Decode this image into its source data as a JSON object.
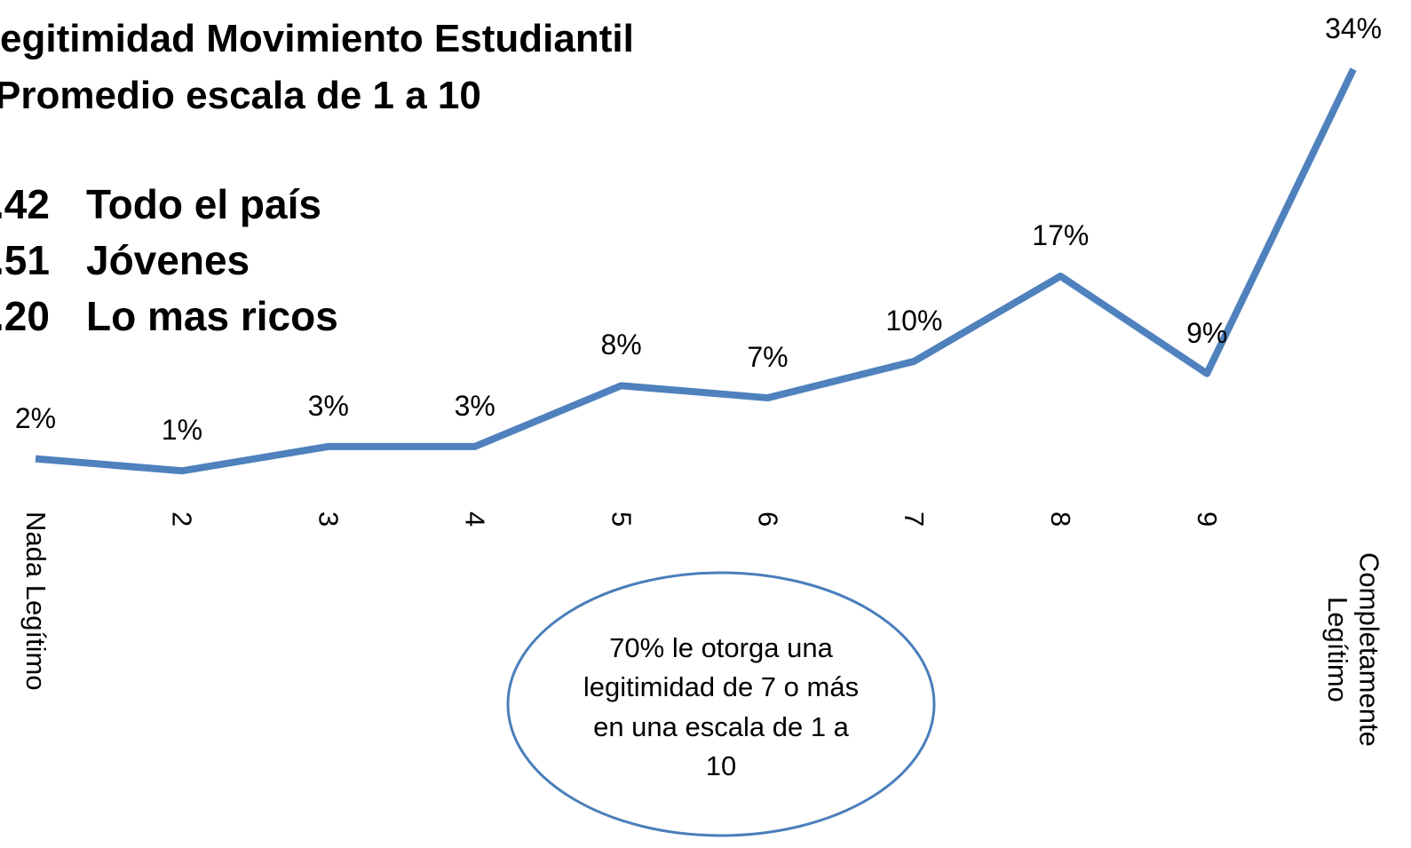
{
  "chart_data": {
    "type": "line",
    "title": "egitimidad Movimiento Estudiantil",
    "subtitle": "Promedio escala de 1 a 10",
    "averages": [
      {
        "number": ".42",
        "group": "Todo el país"
      },
      {
        "number": ".51",
        "group": "Jóvenes"
      },
      {
        "number": ".20",
        "group": "Lo mas ricos"
      }
    ],
    "categories": [
      "Nada Legítimo",
      "2",
      "3",
      "4",
      "5",
      "6",
      "7",
      "8",
      "9",
      "Completamente Legítimo"
    ],
    "values": [
      2,
      1,
      3,
      3,
      8,
      7,
      10,
      17,
      9,
      34
    ],
    "value_labels": [
      "2%",
      "1%",
      "3%",
      "3%",
      "8%",
      "7%",
      "10%",
      "17%",
      "9%",
      "34%"
    ],
    "color": "#4f81bd",
    "ylim": [
      0,
      34
    ],
    "annotation": "70% le otorga una legitimidad de 7 o más en una escala de 1 a 10"
  }
}
